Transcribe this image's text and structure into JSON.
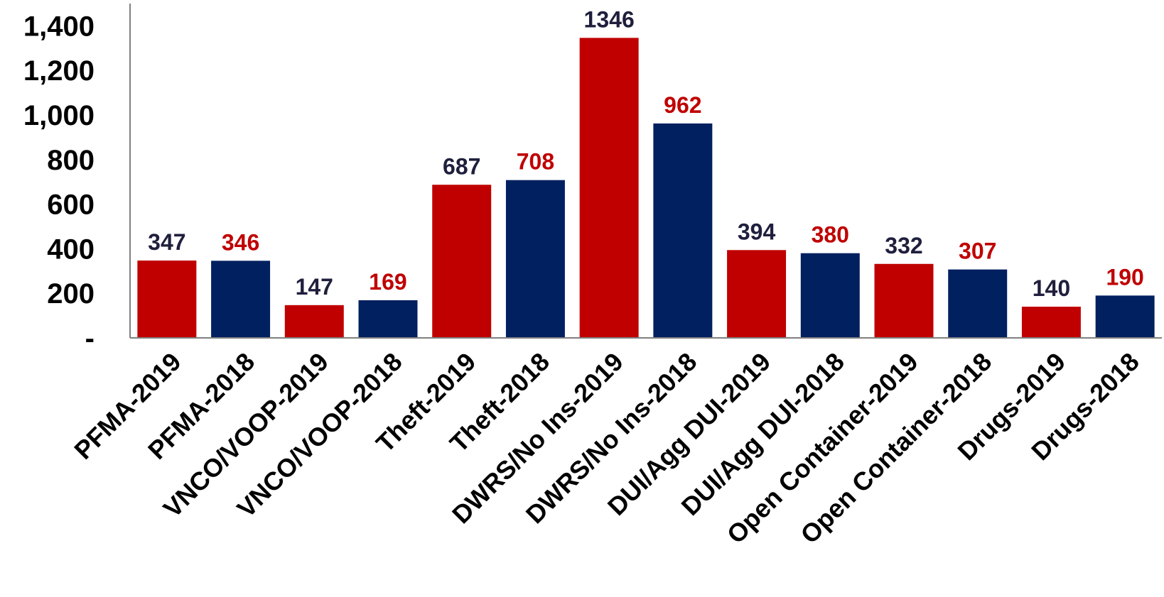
{
  "chart_data": {
    "type": "bar",
    "title": "",
    "xlabel": "",
    "ylabel": "",
    "ylim": [
      0,
      1500
    ],
    "yticks": [
      {
        "value": 0,
        "label": "-"
      },
      {
        "value": 200,
        "label": "200"
      },
      {
        "value": 400,
        "label": "400"
      },
      {
        "value": 600,
        "label": "600"
      },
      {
        "value": 800,
        "label": "800"
      },
      {
        "value": 1000,
        "label": "1,000"
      },
      {
        "value": 1200,
        "label": "1,200"
      },
      {
        "value": 1400,
        "label": "1,400"
      }
    ],
    "grid": false,
    "legend": "none",
    "categories": [
      "PFMA-2019",
      "PFMA-2018",
      "VNCO/VOOP-2019",
      "VNCO/VOOP-2018",
      "Theft-2019",
      "Theft-2018",
      "DWRS/No Ins-2019",
      "DWRS/No Ins-2018",
      "DUI/Agg DUI-2019",
      "DUI/Agg DUI-2018",
      "Open Container-2019",
      "Open Container-2018",
      "Drugs-2019",
      "Drugs-2018"
    ],
    "values": [
      347,
      346,
      147,
      169,
      687,
      708,
      1346,
      962,
      394,
      380,
      332,
      307,
      140,
      190
    ],
    "value_labels": [
      "347",
      "346",
      "147",
      "169",
      "687",
      "708",
      "1346",
      "962",
      "394",
      "380",
      "332",
      "307",
      "140",
      "190"
    ],
    "bar_colors": [
      "#C00000",
      "#002060",
      "#C00000",
      "#002060",
      "#C00000",
      "#002060",
      "#C00000",
      "#002060",
      "#C00000",
      "#002060",
      "#C00000",
      "#002060",
      "#C00000",
      "#002060"
    ],
    "label_colors": [
      "#1F1F3D",
      "#C00000",
      "#1F1F3D",
      "#C00000",
      "#1F1F3D",
      "#C00000",
      "#1F1F3D",
      "#C00000",
      "#1F1F3D",
      "#C00000",
      "#1F1F3D",
      "#C00000",
      "#1F1F3D",
      "#C00000"
    ],
    "axis_color": "#808080"
  }
}
